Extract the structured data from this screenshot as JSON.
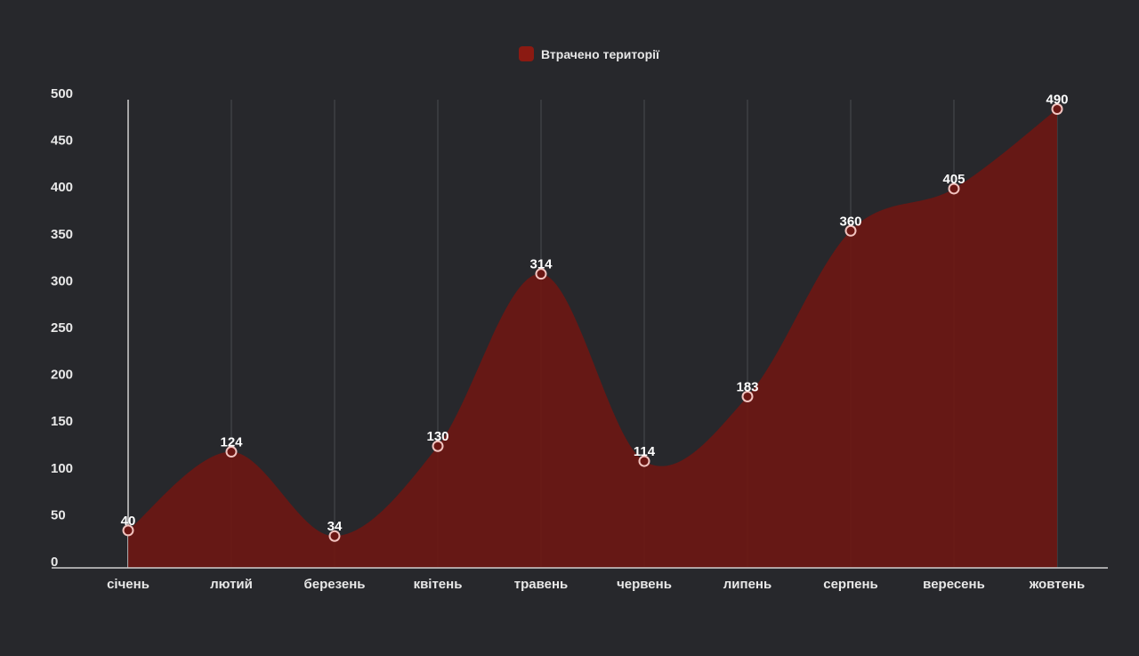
{
  "chart_data": {
    "type": "area",
    "categories": [
      "січень",
      "лютий",
      "березень",
      "квітень",
      "травень",
      "червень",
      "липень",
      "серпень",
      "вересень",
      "жовтень"
    ],
    "series": [
      {
        "name": "Втрачено території",
        "values": [
          40,
          124,
          34,
          130,
          314,
          114,
          183,
          360,
          405,
          490
        ],
        "color": "#6b1714"
      }
    ],
    "y_ticks": [
      "0",
      "50",
      "100",
      "150",
      "200",
      "250",
      "300",
      "350",
      "400",
      "450",
      "500"
    ],
    "data_labels": [
      "40",
      "124",
      "34",
      "130",
      "314",
      "114",
      "183",
      "360",
      "405",
      "490"
    ],
    "ylim": [
      0,
      500
    ],
    "grid": "vertical",
    "legend_position": "top-center",
    "colors": {
      "background": "#27282c",
      "area_fill": "#6b1714",
      "legend_swatch": "#8b1a12",
      "marker_stroke": "#f2c4c0",
      "axis": "#d0d0d0",
      "grid": "#4a4b50"
    }
  }
}
